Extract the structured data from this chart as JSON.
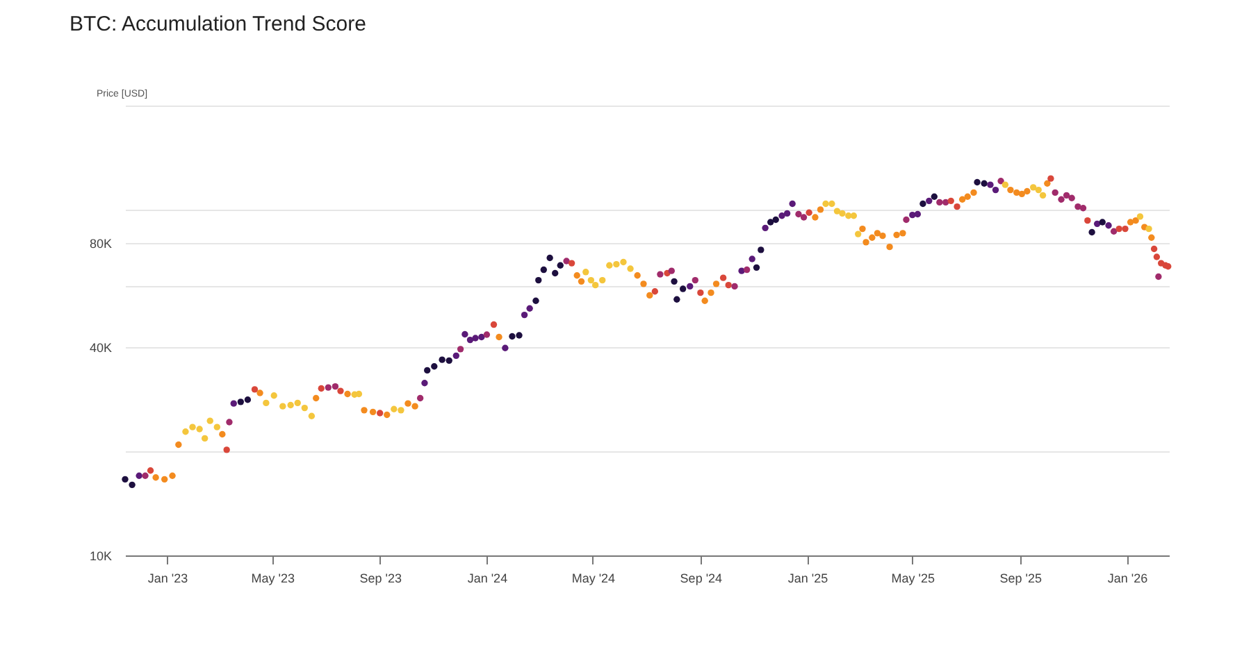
{
  "chart_data": {
    "type": "scatter",
    "title": "BTC: Accumulation Trend Score",
    "ylabel": "Price [USD]",
    "log": true,
    "grid": "y",
    "marker": "circle",
    "xlim": [
      "2022-11-14",
      "2026-02-18"
    ],
    "xticks": [
      {
        "value": "2023-01-01",
        "label": "Jan '23"
      },
      {
        "value": "2023-05-01",
        "label": "May '23"
      },
      {
        "value": "2023-09-01",
        "label": "Sep '23"
      },
      {
        "value": "2024-01-01",
        "label": "Jan '24"
      },
      {
        "value": "2024-05-01",
        "label": "May '24"
      },
      {
        "value": "2024-09-01",
        "label": "Sep '24"
      },
      {
        "value": "2025-01-01",
        "label": "Jan '25"
      },
      {
        "value": "2025-05-01",
        "label": "May '25"
      },
      {
        "value": "2025-09-01",
        "label": "Sep '25"
      },
      {
        "value": "2026-01-01",
        "label": "Jan '26"
      }
    ],
    "ylim": [
      10000,
      200000
    ],
    "yticks": [
      {
        "value": 10000,
        "label": "10K"
      },
      {
        "value": 20000,
        "label": null
      },
      {
        "value": 40000,
        "label": "40K"
      },
      {
        "value": 60000,
        "label": null
      },
      {
        "value": 80000,
        "label": "80K"
      },
      {
        "value": 100000,
        "label": null
      },
      {
        "value": 200000,
        "label": null
      }
    ],
    "x": [
      "2022-11-14",
      "2022-11-22",
      "2022-11-30",
      "2022-12-07",
      "2022-12-13",
      "2022-12-19",
      "2022-12-29",
      "2023-01-07",
      "2023-01-14",
      "2023-01-22",
      "2023-01-30",
      "2023-02-07",
      "2023-02-13",
      "2023-02-19",
      "2023-02-27",
      "2023-03-05",
      "2023-03-10",
      "2023-03-13",
      "2023-03-18",
      "2023-03-26",
      "2023-04-03",
      "2023-04-11",
      "2023-04-17",
      "2023-04-24",
      "2023-05-03",
      "2023-05-13",
      "2023-05-22",
      "2023-05-30",
      "2023-06-07",
      "2023-06-15",
      "2023-06-20",
      "2023-06-26",
      "2023-07-04",
      "2023-07-12",
      "2023-07-18",
      "2023-07-26",
      "2023-08-03",
      "2023-08-08",
      "2023-08-14",
      "2023-08-24",
      "2023-09-01",
      "2023-09-09",
      "2023-09-17",
      "2023-09-25",
      "2023-10-03",
      "2023-10-11",
      "2023-10-17",
      "2023-10-22",
      "2023-10-25",
      "2023-11-02",
      "2023-11-11",
      "2023-11-19",
      "2023-11-27",
      "2023-12-02",
      "2023-12-07",
      "2023-12-13",
      "2023-12-19",
      "2023-12-26",
      "2024-01-01",
      "2024-01-09",
      "2024-01-15",
      "2024-01-22",
      "2024-01-30",
      "2024-02-07",
      "2024-02-13",
      "2024-02-19",
      "2024-02-26",
      "2024-02-29",
      "2024-03-06",
      "2024-03-13",
      "2024-03-19",
      "2024-03-25",
      "2024-04-01",
      "2024-04-07",
      "2024-04-13",
      "2024-04-18",
      "2024-04-23",
      "2024-04-29",
      "2024-05-04",
      "2024-05-12",
      "2024-05-20",
      "2024-05-28",
      "2024-06-05",
      "2024-06-13",
      "2024-06-21",
      "2024-06-28",
      "2024-07-05",
      "2024-07-11",
      "2024-07-17",
      "2024-07-25",
      "2024-07-30",
      "2024-08-02",
      "2024-08-05",
      "2024-08-12",
      "2024-08-20",
      "2024-08-26",
      "2024-09-01",
      "2024-09-06",
      "2024-09-13",
      "2024-09-19",
      "2024-09-27",
      "2024-10-03",
      "2024-10-10",
      "2024-10-18",
      "2024-10-24",
      "2024-10-30",
      "2024-11-04",
      "2024-11-09",
      "2024-11-14",
      "2024-11-20",
      "2024-11-26",
      "2024-12-03",
      "2024-12-09",
      "2024-12-15",
      "2024-12-22",
      "2024-12-28",
      "2025-01-03",
      "2025-01-10",
      "2025-01-16",
      "2025-01-22",
      "2025-01-29",
      "2025-02-04",
      "2025-02-10",
      "2025-02-17",
      "2025-02-23",
      "2025-02-28",
      "2025-03-05",
      "2025-03-09",
      "2025-03-16",
      "2025-03-22",
      "2025-03-28",
      "2025-04-05",
      "2025-04-13",
      "2025-04-20",
      "2025-04-24",
      "2025-05-01",
      "2025-05-07",
      "2025-05-13",
      "2025-05-20",
      "2025-05-26",
      "2025-06-01",
      "2025-06-08",
      "2025-06-14",
      "2025-06-21",
      "2025-06-27",
      "2025-07-03",
      "2025-07-10",
      "2025-07-14",
      "2025-07-22",
      "2025-07-29",
      "2025-08-04",
      "2025-08-10",
      "2025-08-15",
      "2025-08-21",
      "2025-08-28",
      "2025-09-03",
      "2025-09-09",
      "2025-09-16",
      "2025-09-22",
      "2025-09-27",
      "2025-10-02",
      "2025-10-06",
      "2025-10-11",
      "2025-10-18",
      "2025-10-24",
      "2025-10-30",
      "2025-11-06",
      "2025-11-12",
      "2025-11-17",
      "2025-11-22",
      "2025-11-28",
      "2025-12-04",
      "2025-12-11",
      "2025-12-17",
      "2025-12-23",
      "2025-12-30",
      "2026-01-05",
      "2026-01-11",
      "2026-01-16",
      "2026-01-21",
      "2026-01-26",
      "2026-01-29",
      "2026-02-01",
      "2026-02-04",
      "2026-02-06",
      "2026-02-09",
      "2026-02-14",
      "2026-02-17"
    ],
    "values": [
      16600,
      16000,
      17000,
      17000,
      17600,
      16800,
      16600,
      17000,
      20900,
      22800,
      23500,
      23200,
      21800,
      24500,
      23500,
      22400,
      20200,
      24300,
      27500,
      27800,
      28200,
      30200,
      29500,
      27600,
      29000,
      27000,
      27200,
      27600,
      26700,
      25300,
      28500,
      30400,
      30600,
      30800,
      29900,
      29300,
      29200,
      29300,
      26300,
      26000,
      25800,
      25500,
      26500,
      26300,
      27500,
      27000,
      28500,
      31500,
      34300,
      35200,
      36800,
      36600,
      37800,
      39500,
      43600,
      42000,
      42500,
      42800,
      43500,
      46500,
      42800,
      39800,
      43000,
      43300,
      49600,
      51800,
      54500,
      62500,
      67000,
      72500,
      65500,
      69000,
      71000,
      70000,
      64500,
      62000,
      66000,
      62500,
      60500,
      62500,
      69000,
      69500,
      70500,
      67500,
      64500,
      61000,
      56500,
      58000,
      65000,
      65500,
      66500,
      62000,
      55000,
      59000,
      60000,
      62500,
      57500,
      54500,
      57500,
      61000,
      63500,
      60500,
      60000,
      66500,
      67000,
      72000,
      68000,
      76500,
      88500,
      92000,
      93500,
      96000,
      97500,
      104000,
      97000,
      95000,
      98000,
      95000,
      100000,
      104000,
      104000,
      99000,
      97500,
      96000,
      96000,
      85000,
      88000,
      80500,
      83000,
      85500,
      84000,
      78000,
      84500,
      85500,
      93500,
      96500,
      97000,
      104000,
      106000,
      109000,
      105000,
      105000,
      106000,
      102000,
      107000,
      109000,
      112000,
      120000,
      119000,
      118000,
      114000,
      121000,
      118000,
      114000,
      112000,
      111000,
      113000,
      116000,
      114000,
      110000,
      119000,
      123000,
      112000,
      107000,
      110000,
      108000,
      102000,
      101000,
      93000,
      86000,
      91000,
      92000,
      90000,
      86500,
      88000,
      88000,
      92000,
      93000,
      95500,
      89000,
      88000,
      83000,
      77000,
      73000,
      64000,
      70000,
      69000,
      68500
    ],
    "colors": [
      "#1d0f3f",
      "#1d0f3f",
      "#5a1a78",
      "#a02b6b",
      "#d9473a",
      "#f38b1f",
      "#f38b1f",
      "#f38b1f",
      "#f38b1f",
      "#f4c63d",
      "#f4c63d",
      "#f4c63d",
      "#f4c63d",
      "#f4c63d",
      "#f4c63d",
      "#f38b1f",
      "#d9473a",
      "#a02b6b",
      "#5a1a78",
      "#1d0f3f",
      "#1d0f3f",
      "#d9473a",
      "#f38b1f",
      "#f4c63d",
      "#f4c63d",
      "#f4c63d",
      "#f4c63d",
      "#f4c63d",
      "#f4c63d",
      "#f4c63d",
      "#f38b1f",
      "#d9473a",
      "#a02b6b",
      "#a02b6b",
      "#d9473a",
      "#f38b1f",
      "#f4c63d",
      "#f4c63d",
      "#f38b1f",
      "#f38b1f",
      "#d9473a",
      "#f38b1f",
      "#f4c63d",
      "#f4c63d",
      "#f38b1f",
      "#f38b1f",
      "#a02b6b",
      "#5a1a78",
      "#1d0f3f",
      "#1d0f3f",
      "#1d0f3f",
      "#1d0f3f",
      "#5a1a78",
      "#a02b6b",
      "#5a1a78",
      "#5a1a78",
      "#5a1a78",
      "#5a1a78",
      "#a02b6b",
      "#d9473a",
      "#f38b1f",
      "#5a1a78",
      "#1d0f3f",
      "#1d0f3f",
      "#5a1a78",
      "#5a1a78",
      "#1d0f3f",
      "#1d0f3f",
      "#1d0f3f",
      "#1d0f3f",
      "#1d0f3f",
      "#1d0f3f",
      "#a02b6b",
      "#d9473a",
      "#f38b1f",
      "#f38b1f",
      "#f4c63d",
      "#f4c63d",
      "#f4c63d",
      "#f4c63d",
      "#f4c63d",
      "#f4c63d",
      "#f4c63d",
      "#f4c63d",
      "#f38b1f",
      "#f38b1f",
      "#f38b1f",
      "#d9473a",
      "#a02b6b",
      "#d9473a",
      "#a02b6b",
      "#1d0f3f",
      "#1d0f3f",
      "#1d0f3f",
      "#5a1a78",
      "#a02b6b",
      "#d9473a",
      "#f38b1f",
      "#f38b1f",
      "#f38b1f",
      "#d9473a",
      "#d9473a",
      "#a02b6b",
      "#5a1a78",
      "#a02b6b",
      "#5a1a78",
      "#1d0f3f",
      "#1d0f3f",
      "#5a1a78",
      "#1d0f3f",
      "#1d0f3f",
      "#5a1a78",
      "#5a1a78",
      "#5a1a78",
      "#a02b6b",
      "#a02b6b",
      "#d9473a",
      "#f38b1f",
      "#f38b1f",
      "#f4c63d",
      "#f4c63d",
      "#f4c63d",
      "#f4c63d",
      "#f4c63d",
      "#f4c63d",
      "#f4c63d",
      "#f38b1f",
      "#f38b1f",
      "#f38b1f",
      "#f38b1f",
      "#f38b1f",
      "#f38b1f",
      "#f38b1f",
      "#f38b1f",
      "#a02b6b",
      "#5a1a78",
      "#5a1a78",
      "#1d0f3f",
      "#5a1a78",
      "#1d0f3f",
      "#a02b6b",
      "#a02b6b",
      "#d9473a",
      "#d9473a",
      "#f38b1f",
      "#f38b1f",
      "#f38b1f",
      "#1d0f3f",
      "#1d0f3f",
      "#5a1a78",
      "#5a1a78",
      "#a02b6b",
      "#f4c63d",
      "#f38b1f",
      "#f38b1f",
      "#f38b1f",
      "#f38b1f",
      "#f4c63d",
      "#f4c63d",
      "#f4c63d",
      "#f38b1f",
      "#d9473a",
      "#a02b6b",
      "#a02b6b",
      "#a02b6b",
      "#a02b6b",
      "#a02b6b",
      "#a02b6b",
      "#d9473a",
      "#1d0f3f",
      "#5a1a78",
      "#1d0f3f",
      "#5a1a78",
      "#a02b6b",
      "#d9473a",
      "#d9473a",
      "#f38b1f",
      "#f38b1f",
      "#f4c63d",
      "#f38b1f",
      "#f4c63d",
      "#f38b1f",
      "#d9473a",
      "#d9473a",
      "#a02b6b",
      "#d9473a",
      "#d9473a",
      "#d9473a"
    ]
  }
}
